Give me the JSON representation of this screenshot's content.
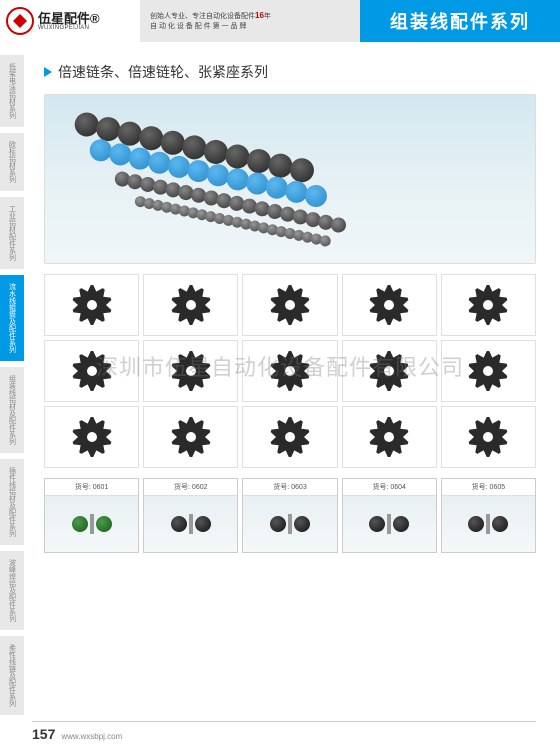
{
  "header": {
    "logo_cn": "伍星配件®",
    "logo_en": "WUXINGPEIJIAN",
    "slogan1_pre": "创始人专业、专注自动化设备配件",
    "slogan1_num": "16",
    "slogan1_post": "年",
    "slogan2": "自 动 化 设 备 配 件 第 一 品 牌",
    "title": "组装线配件系列"
  },
  "sidebar": [
    {
      "label": "低架电泳铝材系列",
      "active": false
    },
    {
      "label": "欧标铝材系列",
      "active": false
    },
    {
      "label": "工业铝材配件系列",
      "active": false
    },
    {
      "label": "流水线辊筒及配件系列",
      "active": true
    },
    {
      "label": "组装线铝材及配件系列",
      "active": false
    },
    {
      "label": "插件线铝材及配件系列",
      "active": false
    },
    {
      "label": "波峰焊铝及配件系列",
      "active": false
    },
    {
      "label": "柔性线链及配件系列",
      "active": false
    }
  ],
  "section_title": "倍速链条、倍速链轮、张紧座系列",
  "watermark": "深圳市伍星自动化设备配件有限公司",
  "gear_grid": {
    "rows": 3,
    "cols": 5,
    "color": "#2a2a2a"
  },
  "products": [
    {
      "code": "货号: 0601",
      "wheel_color": "green"
    },
    {
      "code": "货号: 0602",
      "wheel_color": "dark"
    },
    {
      "code": "货号: 0603",
      "wheel_color": "dark"
    },
    {
      "code": "货号: 0604",
      "wheel_color": "dark"
    },
    {
      "code": "货号: 0605",
      "wheel_color": "dark"
    }
  ],
  "footer": {
    "page": "157",
    "url": "www.wxsbpj.com"
  }
}
